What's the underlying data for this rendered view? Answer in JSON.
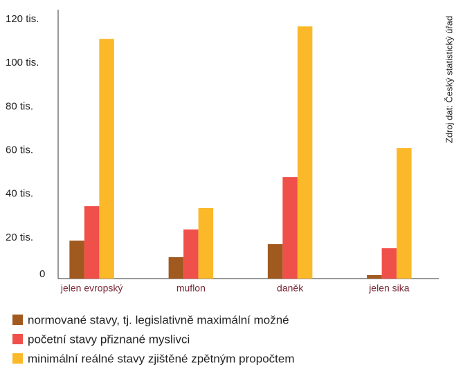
{
  "chart_data": {
    "type": "bar",
    "source": "Zdroj dat: Český statistický úřad",
    "categories": [
      "jelen evropský",
      "muflon",
      "daněk",
      "jelen sika"
    ],
    "series": [
      {
        "name": "normované stavy, tj. legislativně maximální možné",
        "color": "#a0591f",
        "values": [
          17400,
          9800,
          15800,
          1600
        ]
      },
      {
        "name": "početní stavy přiznané myslivci",
        "color": "#f0504a",
        "values": [
          33200,
          22500,
          46500,
          13900
        ]
      },
      {
        "name": "minimální reálné stavy zjištěné zpětným propočtem",
        "color": "#fbb829",
        "values": [
          109800,
          32300,
          115500,
          59800
        ]
      }
    ],
    "ylim": [
      0,
      120000
    ],
    "yticks": [
      0,
      {
        "value": 20000,
        "label": "20 tis."
      },
      {
        "value": 40000,
        "label": "40 tis."
      },
      {
        "value": 60000,
        "label": "60 tis."
      },
      {
        "value": 80000,
        "label": "80 tis."
      },
      {
        "value": 100000,
        "label": "100 tis."
      },
      {
        "value": 120000,
        "label": "120 tis."
      }
    ],
    "grid": false
  }
}
